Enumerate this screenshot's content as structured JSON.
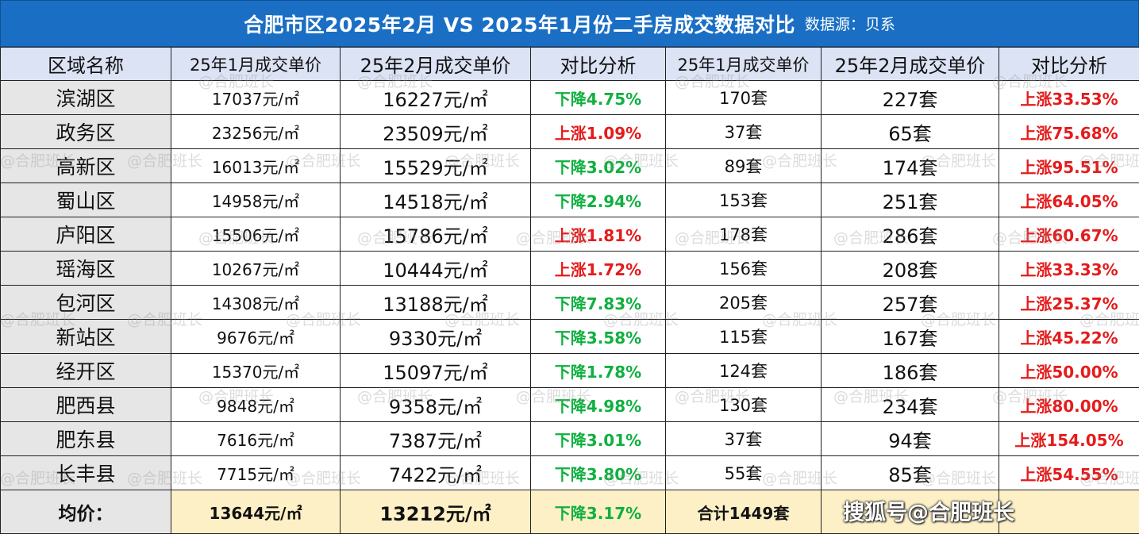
{
  "title": {
    "main": "合肥市区2025年2月 VS 2025年1月份二手房成交数据对比",
    "source": "数据源：贝系"
  },
  "headers": [
    "区域名称",
    "25年1月成交单价",
    "25年2月成交单价",
    "对比分析",
    "25年1月成交单价",
    "25年2月成交单价",
    "对比分析"
  ],
  "price_unit": "元/㎡",
  "rows": [
    {
      "district": "滨湖区",
      "price_jan": "17037",
      "price_feb": "16227",
      "price_change": "下降4.75%",
      "price_dir": "down",
      "count_jan": "170套",
      "count_feb": "227套",
      "count_change": "上涨33.53%",
      "count_dir": "up"
    },
    {
      "district": "政务区",
      "price_jan": "23256",
      "price_feb": "23509",
      "price_change": "上涨1.09%",
      "price_dir": "up",
      "count_jan": "37套",
      "count_feb": "65套",
      "count_change": "上涨75.68%",
      "count_dir": "up"
    },
    {
      "district": "高新区",
      "price_jan": "16013",
      "price_feb": "15529",
      "price_change": "下降3.02%",
      "price_dir": "down",
      "count_jan": "89套",
      "count_feb": "174套",
      "count_change": "上涨95.51%",
      "count_dir": "up"
    },
    {
      "district": "蜀山区",
      "price_jan": "14958",
      "price_feb": "14518",
      "price_change": "下降2.94%",
      "price_dir": "down",
      "count_jan": "153套",
      "count_feb": "251套",
      "count_change": "上涨64.05%",
      "count_dir": "up"
    },
    {
      "district": "庐阳区",
      "price_jan": "15506",
      "price_feb": "15786",
      "price_change": "上涨1.81%",
      "price_dir": "up",
      "count_jan": "178套",
      "count_feb": "286套",
      "count_change": "上涨60.67%",
      "count_dir": "up"
    },
    {
      "district": "瑶海区",
      "price_jan": "10267",
      "price_feb": "10444",
      "price_change": "上涨1.72%",
      "price_dir": "up",
      "count_jan": "156套",
      "count_feb": "208套",
      "count_change": "上涨33.33%",
      "count_dir": "up"
    },
    {
      "district": "包河区",
      "price_jan": "14308",
      "price_feb": "13188",
      "price_change": "下降7.83%",
      "price_dir": "down",
      "count_jan": "205套",
      "count_feb": "257套",
      "count_change": "上涨25.37%",
      "count_dir": "up"
    },
    {
      "district": "新站区",
      "price_jan": "9676",
      "price_feb": "9330",
      "price_change": "下降3.58%",
      "price_dir": "down",
      "count_jan": "115套",
      "count_feb": "167套",
      "count_change": "上涨45.22%",
      "count_dir": "up"
    },
    {
      "district": "经开区",
      "price_jan": "15370",
      "price_feb": "15097",
      "price_change": "下降1.78%",
      "price_dir": "down",
      "count_jan": "124套",
      "count_feb": "186套",
      "count_change": "上涨50.00%",
      "count_dir": "up"
    },
    {
      "district": "肥西县",
      "price_jan": "9848",
      "price_feb": "9358",
      "price_change": "下降4.98%",
      "price_dir": "down",
      "count_jan": "130套",
      "count_feb": "234套",
      "count_change": "上涨80.00%",
      "count_dir": "up"
    },
    {
      "district": "肥东县",
      "price_jan": "7616",
      "price_feb": "7387",
      "price_change": "下降3.01%",
      "price_dir": "down",
      "count_jan": "37套",
      "count_feb": "94套",
      "count_change": "上涨154.05%",
      "count_dir": "up"
    },
    {
      "district": "长丰县",
      "price_jan": "7715",
      "price_feb": "7422",
      "price_change": "下降3.80%",
      "price_dir": "down",
      "count_jan": "55套",
      "count_feb": "85套",
      "count_change": "上涨54.55%",
      "count_dir": "up"
    }
  ],
  "summary": {
    "label": "均价：",
    "price_jan": "13644",
    "price_feb": "13212",
    "price_change": "下降3.17%",
    "price_dir": "down",
    "count_jan": "合计1449套"
  },
  "watermarks": {
    "repeating": "@合肥班长",
    "sohu": "搜狐号@合肥班长"
  },
  "colors": {
    "title_bg": "#1a6fc4",
    "header_bg": "#dbe3f4",
    "district_bg": "#e6e6e6",
    "summary_bg": "#fdf0c6",
    "down": "#10b040",
    "up": "#e51b1b"
  }
}
